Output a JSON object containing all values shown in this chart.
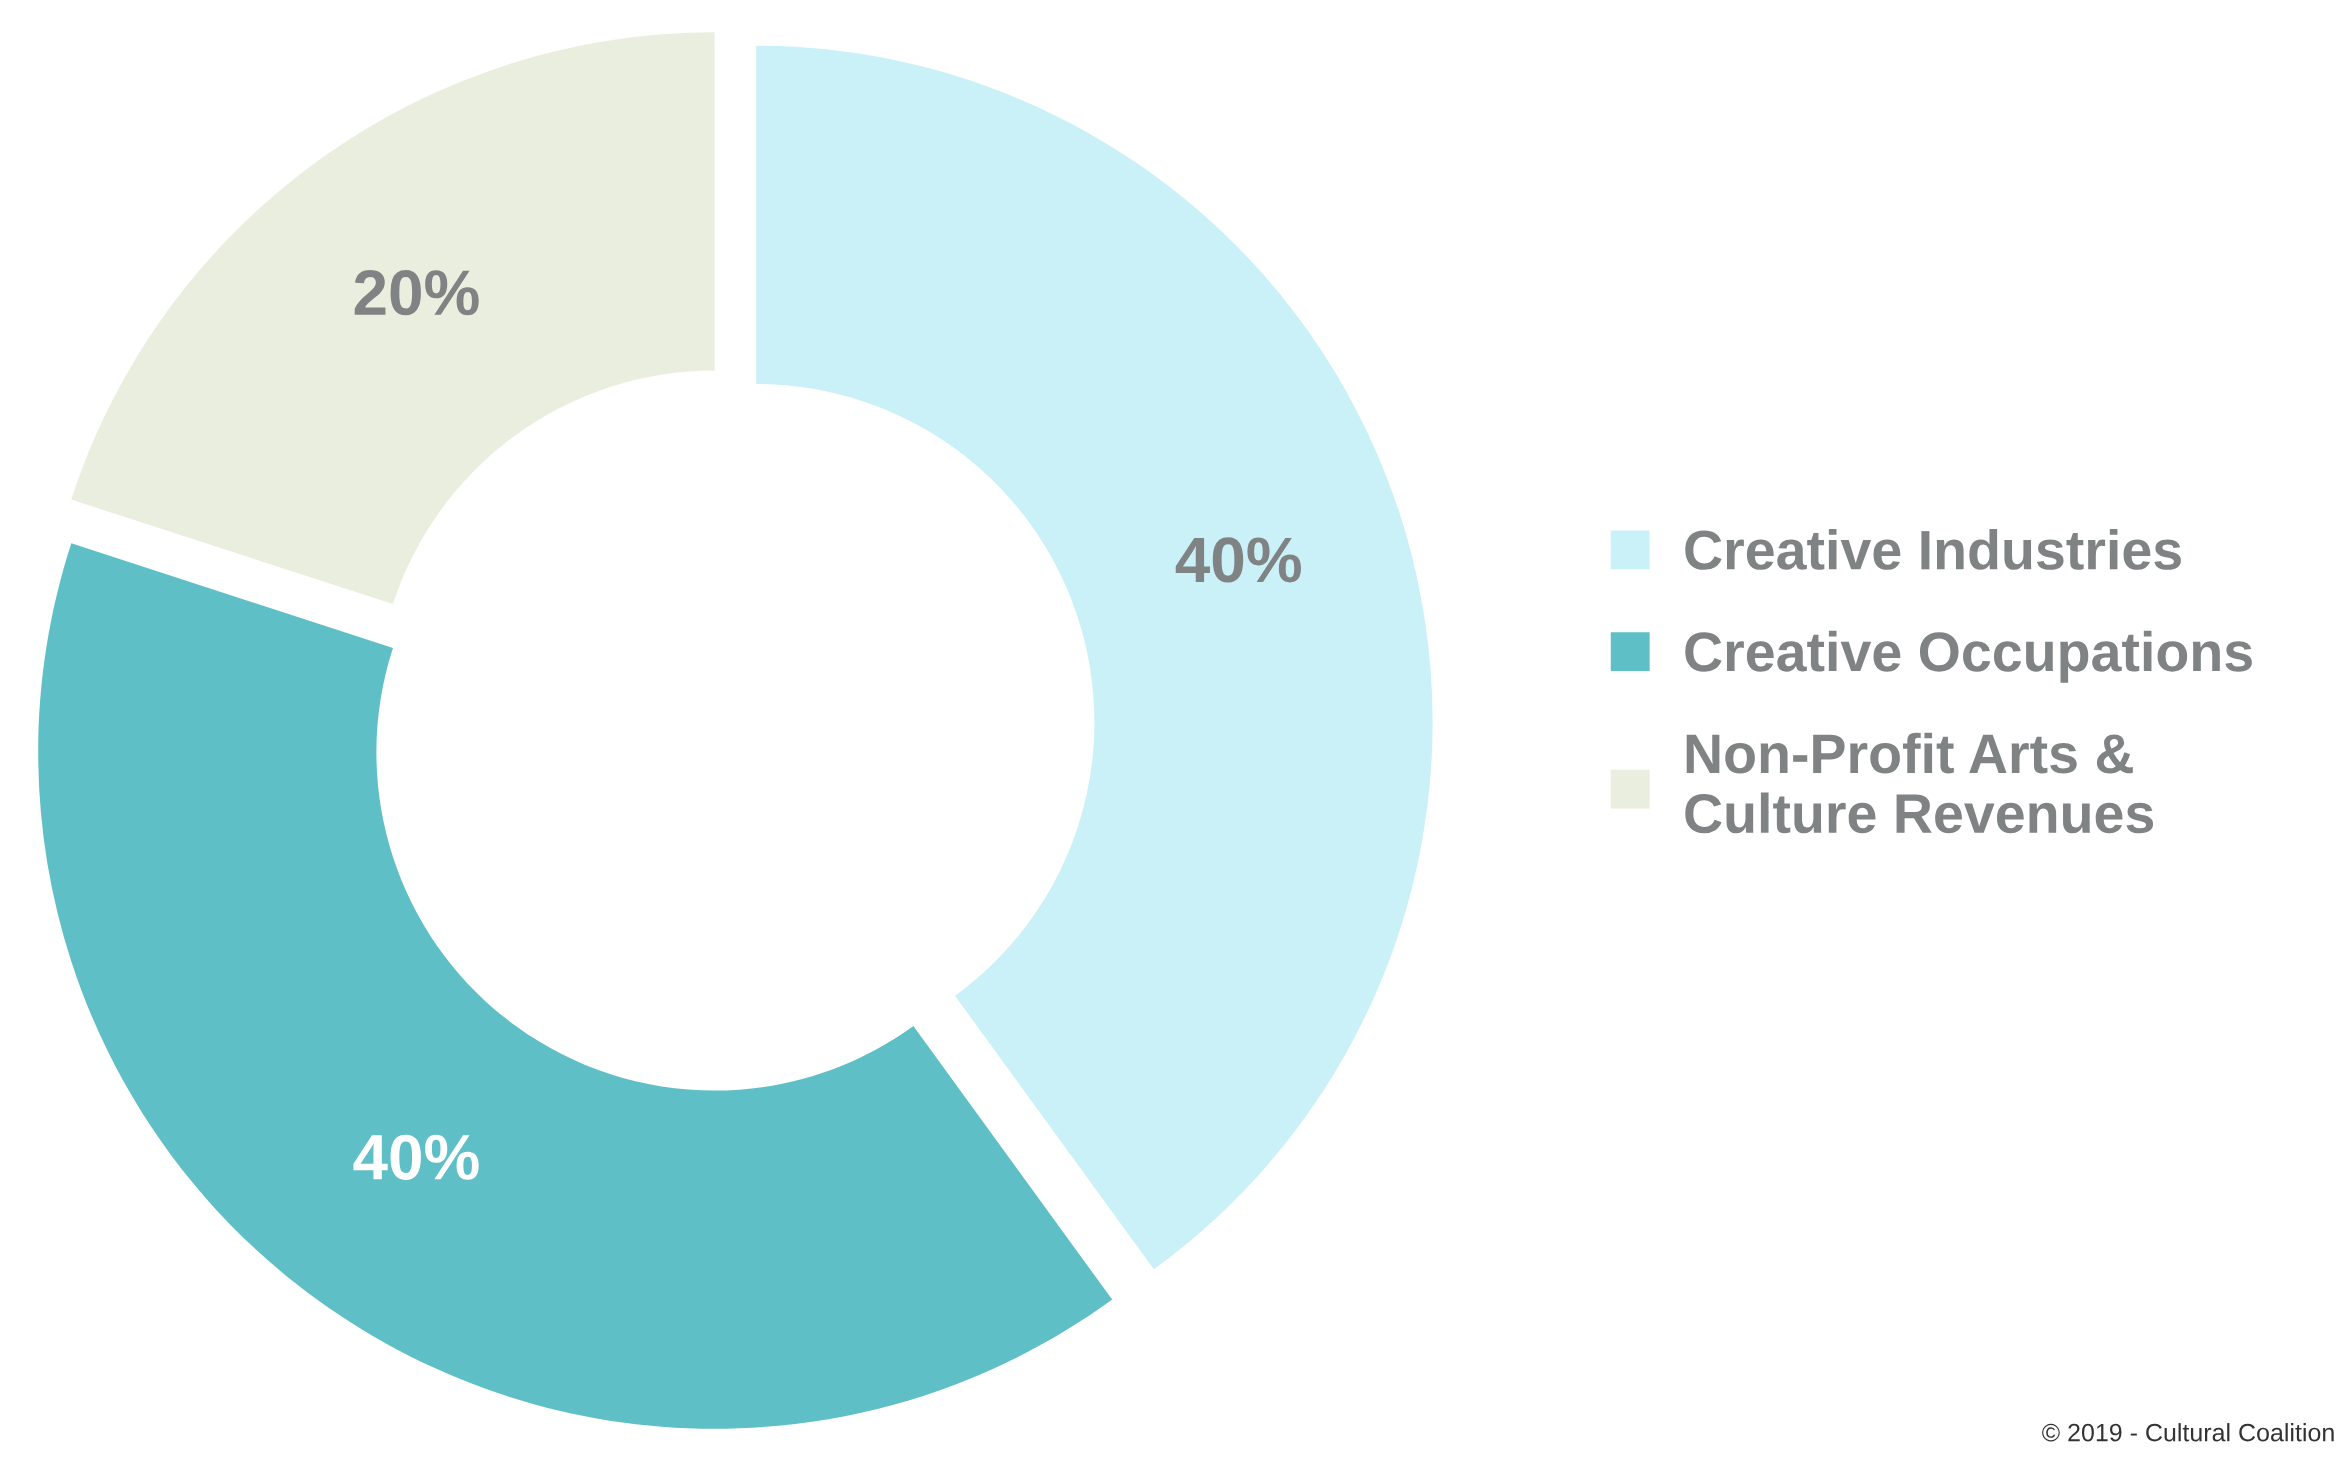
{
  "chart_data": {
    "type": "donut",
    "categories": [
      "Creative Industries",
      "Creative Occupations",
      "Non-Profit Arts &\nCulture Revenues"
    ],
    "values": [
      40,
      40,
      20
    ],
    "colors": [
      "#c9f1f7",
      "#5fbfc6",
      "#eaeede"
    ],
    "value_labels": [
      "40%",
      "40%",
      "20%"
    ],
    "legend": "right",
    "annotations": [
      "© 2019 - Cultural Coalition"
    ]
  }
}
